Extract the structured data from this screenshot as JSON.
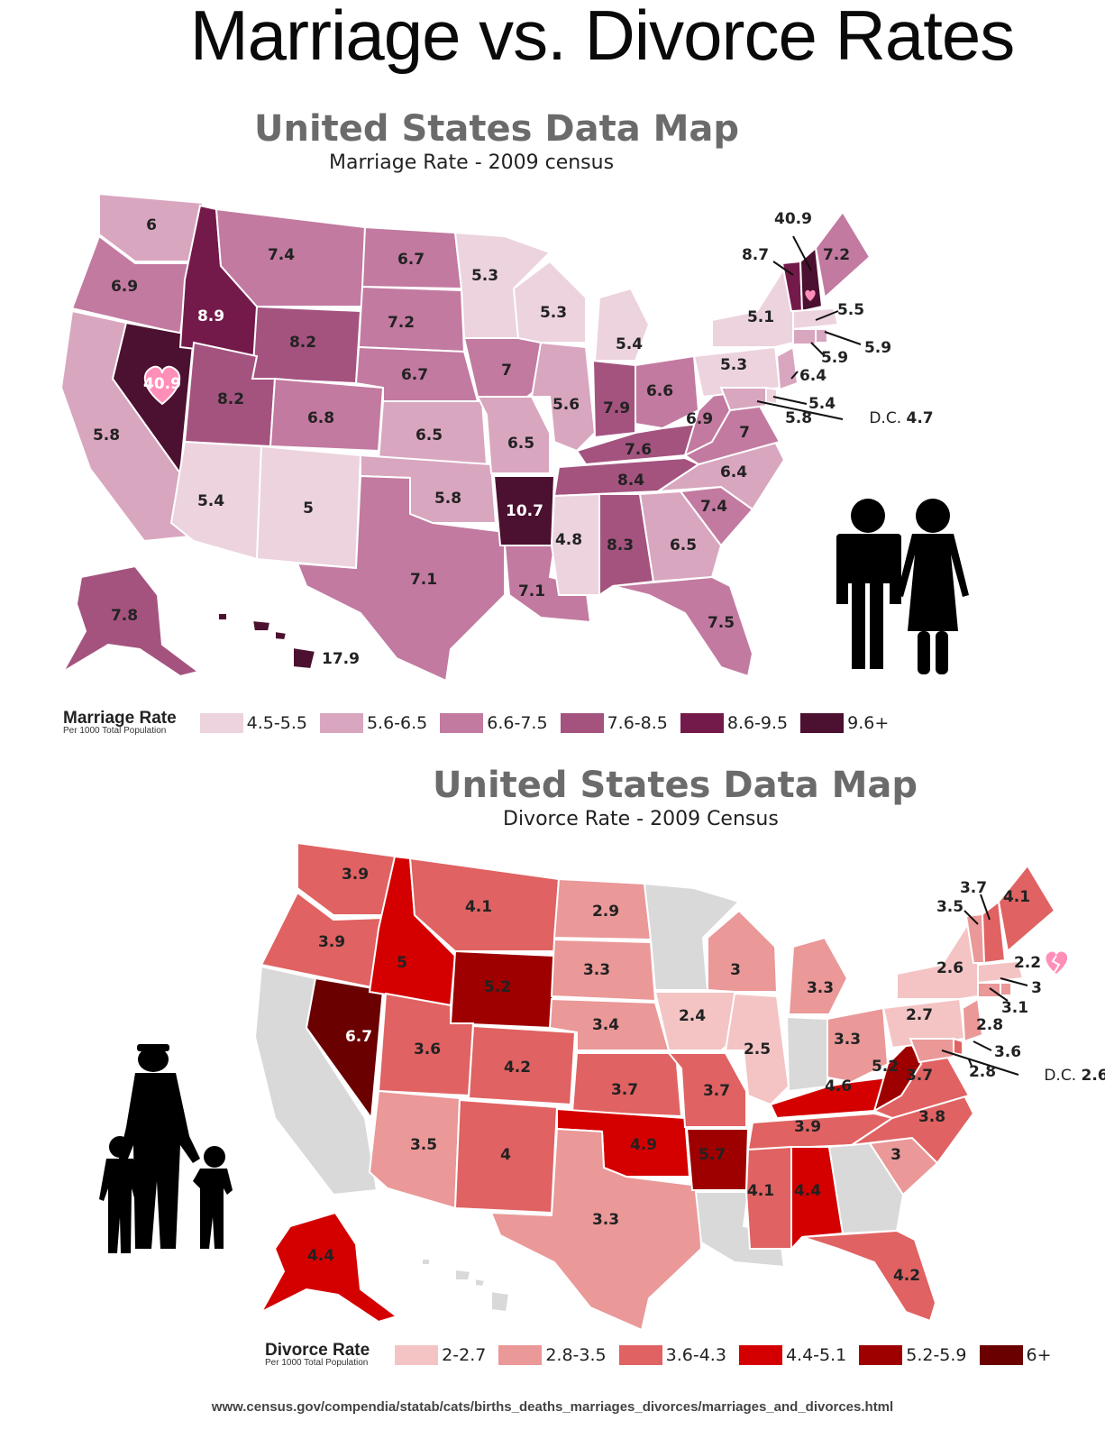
{
  "title": "Marriage vs. Divorce Rates",
  "marriage_map": {
    "title": "United States Data Map",
    "subtitle": "Marriage Rate - 2009 census",
    "legend": {
      "title": "Marriage Rate",
      "subtitle": "Per 1000 Total Population",
      "items": [
        {
          "label": "4.5-5.5",
          "color": "#ecd3de"
        },
        {
          "label": "5.6-6.5",
          "color": "#d9a6bf"
        },
        {
          "label": "6.6-7.5",
          "color": "#c27aa0"
        },
        {
          "label": "7.6-8.5",
          "color": "#a4537f"
        },
        {
          "label": "8.6-9.5",
          "color": "#741a4b"
        },
        {
          "label": "9.6+",
          "color": "#4c1030"
        }
      ]
    },
    "state_values": {
      "WA": "6",
      "OR": "6.9",
      "CA": "5.8",
      "NV": "40.9",
      "ID": "8.9",
      "MT": "7.4",
      "WY": "8.2",
      "UT": "8.2",
      "AZ": "5.4",
      "CO": "6.8",
      "NM": "5",
      "ND": "6.7",
      "SD": "7.2",
      "NE": "6.7",
      "KS": "6.5",
      "OK": "5.8",
      "TX": "7.1",
      "MN": "5.3",
      "IA": "7",
      "MO": "6.5",
      "AR": "10.7",
      "LA": "7.1",
      "WI": "5.3",
      "IL": "5.6",
      "MI": "5.4",
      "IN": "7.9",
      "OH": "6.6",
      "KY": "7.6",
      "TN": "8.4",
      "MS": "4.8",
      "AL": "8.3",
      "GA": "6.5",
      "FL": "7.5",
      "SC": "7.4",
      "NC": "6.4",
      "VA": "7",
      "WV": "6.9",
      "PA": "5.3",
      "NY": "5.1",
      "VT": "8.7",
      "NH": "40.9",
      "ME": "7.2",
      "MA": "5.5",
      "RI": "5.9",
      "CT": "5.9",
      "NJ": "6.4",
      "DE": "5.4",
      "MD": "5.8",
      "DC": "4.7",
      "AK": "7.8",
      "HI": "17.9"
    },
    "dc_label": "D.C."
  },
  "divorce_map": {
    "title": "United States Data Map",
    "subtitle": "Divorce Rate - 2009 Census",
    "legend": {
      "title": "Divorce Rate",
      "subtitle": "Per 1000 Total Population",
      "items": [
        {
          "label": "2-2.7",
          "color": "#f4c4c4"
        },
        {
          "label": "2.8-3.5",
          "color": "#ea9898"
        },
        {
          "label": "3.6-4.3",
          "color": "#e06262"
        },
        {
          "label": "4.4-5.1",
          "color": "#d40000"
        },
        {
          "label": "5.2-5.9",
          "color": "#9e0000"
        },
        {
          "label": "6+",
          "color": "#6a0000"
        }
      ],
      "no_data_color": "#d9d9d9"
    },
    "state_values": {
      "WA": "3.9",
      "OR": "3.9",
      "NV": "6.7",
      "ID": "5",
      "MT": "4.1",
      "WY": "5.2",
      "UT": "3.6",
      "AZ": "3.5",
      "CO": "4.2",
      "NM": "4",
      "ND": "2.9",
      "SD": "3.3",
      "NE": "3.4",
      "KS": "3.7",
      "OK": "4.9",
      "TX": "3.3",
      "IA": "2.4",
      "MO": "3.7",
      "AR": "5.7",
      "WI": "3",
      "IL": "2.5",
      "MI": "3.3",
      "OH": "3.3",
      "KY": "4.6",
      "TN": "3.9",
      "MS": "4.1",
      "AL": "4.4",
      "FL": "4.2",
      "SC": "3",
      "NC": "3.8",
      "VA": "3.7",
      "WV": "5.2",
      "PA": "2.7",
      "NY": "2.6",
      "VT": "3.5",
      "NH": "3.7",
      "ME": "4.1",
      "MA": "2.2",
      "RI": "3",
      "CT": "3.1",
      "NJ": "2.8",
      "DE": "3.6",
      "MD": "2.8",
      "DC": "2.6",
      "AK": "4.4"
    },
    "dc_label": "D.C."
  },
  "source": "www.census.gov/compendia/statab/cats/births_deaths_marriages_divorces/marriages_and_divorces.html"
}
